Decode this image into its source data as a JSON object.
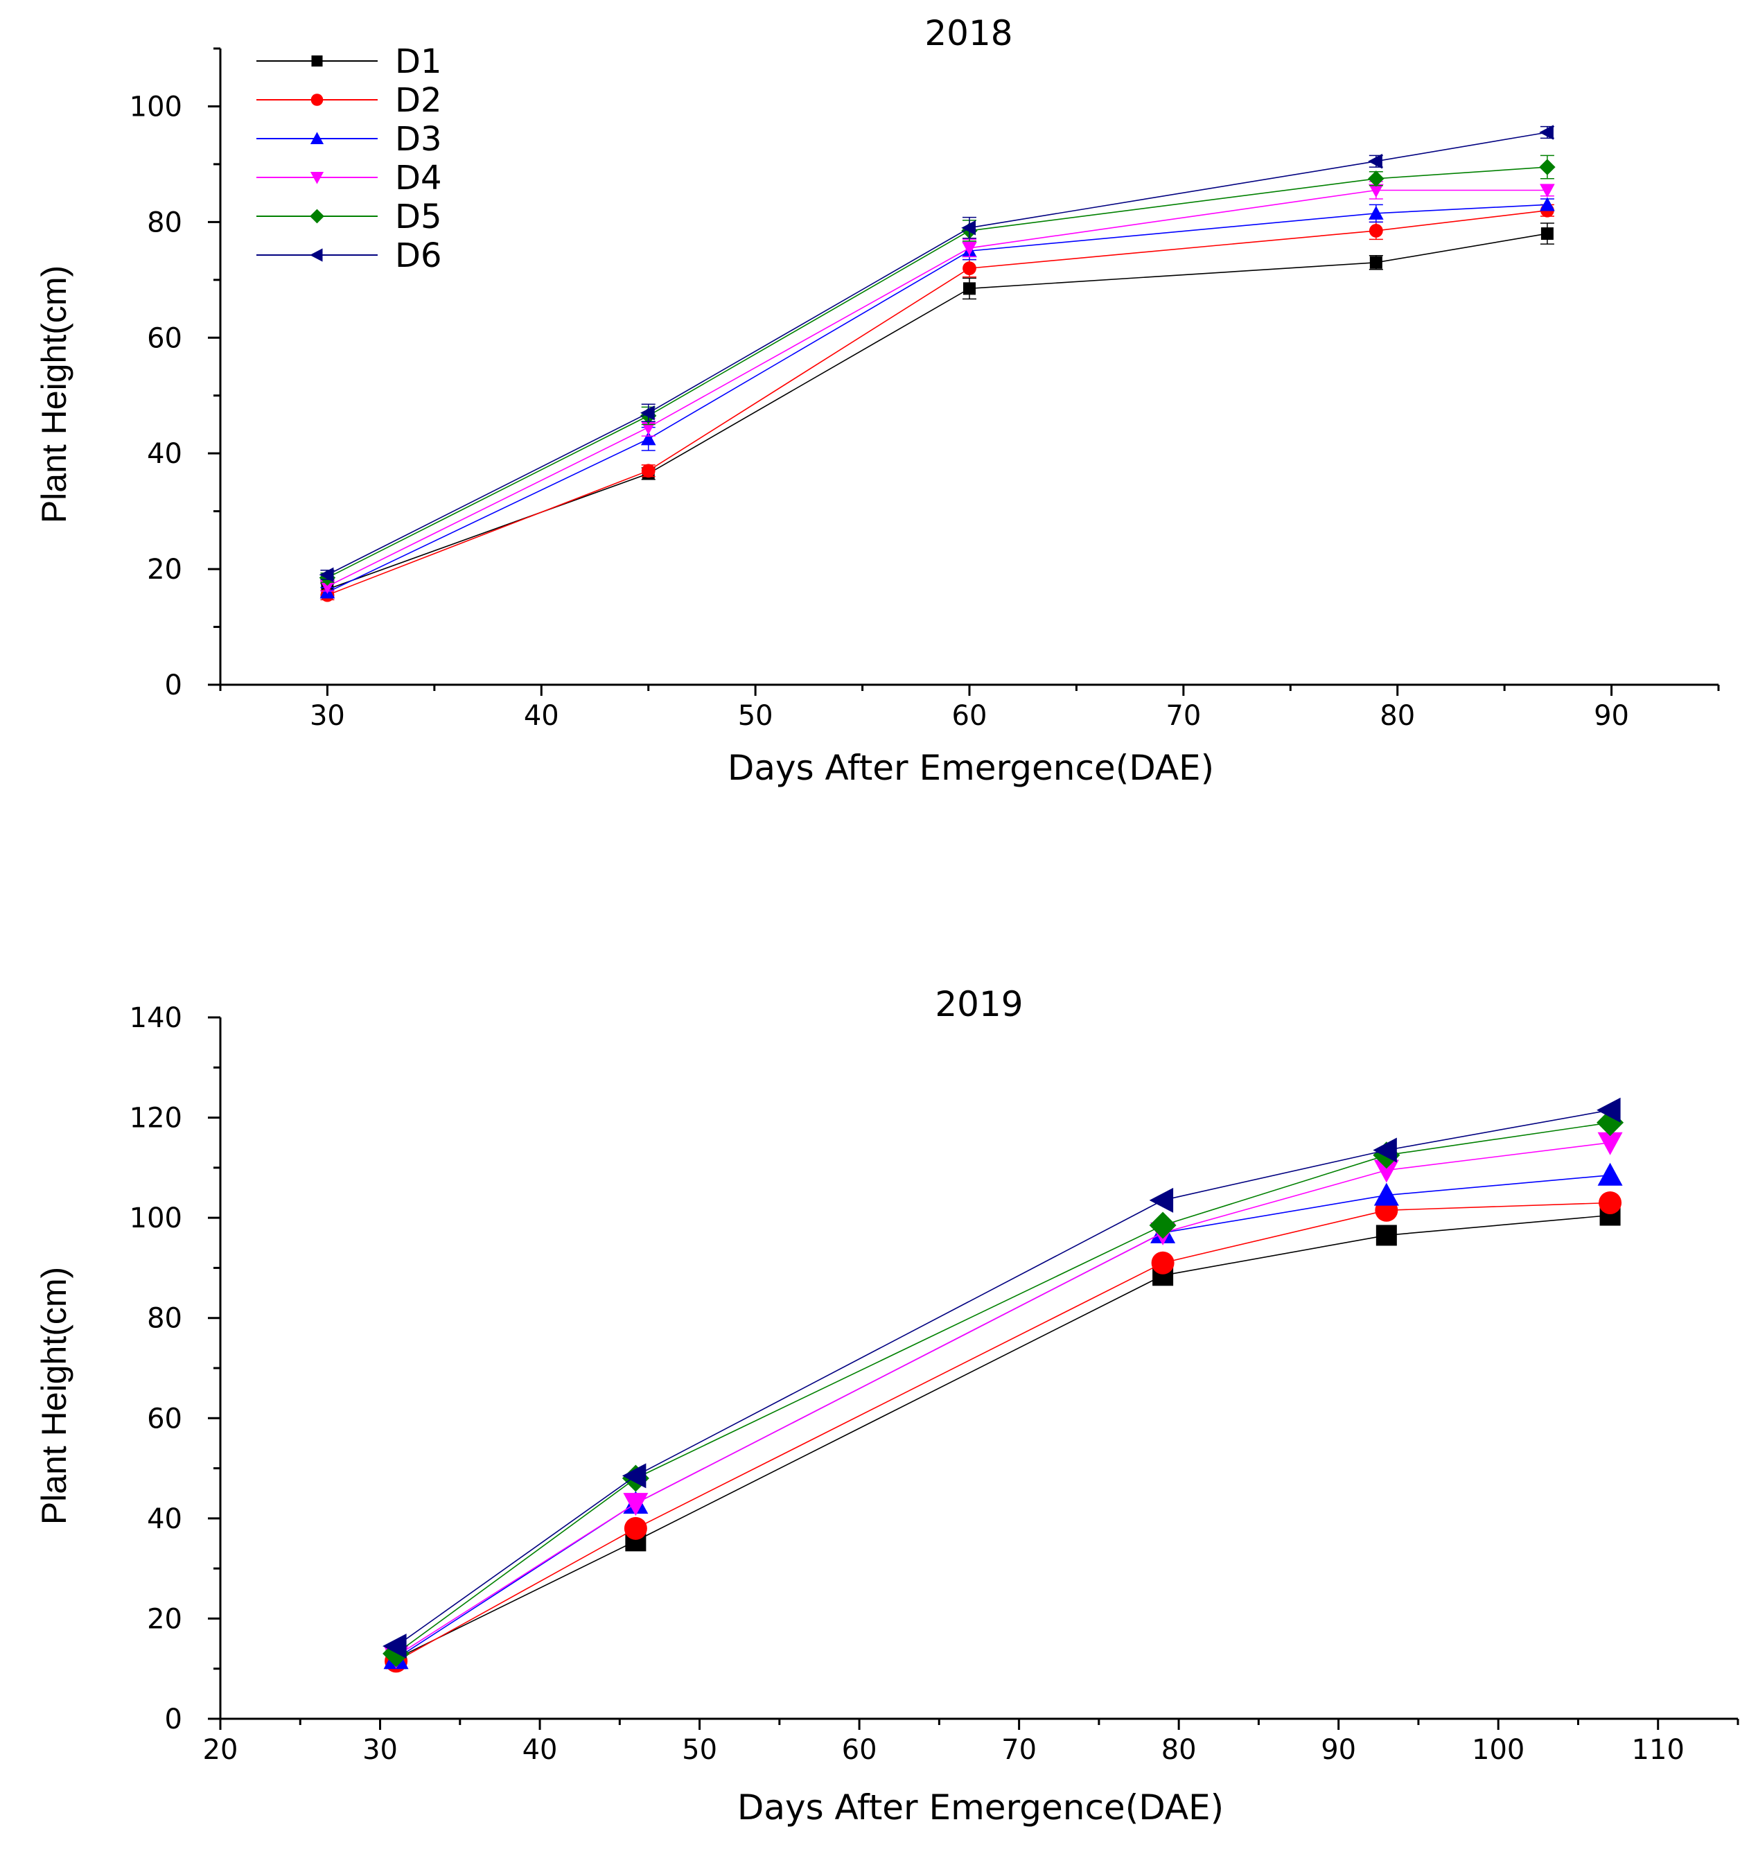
{
  "colors": {
    "D1": "#000000",
    "D2": "#ff0000",
    "D3": "#0000ff",
    "D4": "#ff00ff",
    "D5": "#008000",
    "D6": "#000080"
  },
  "chart_data": [
    {
      "type": "line",
      "title": "2018",
      "xlabel": "Days After Emergence(DAE)",
      "ylabel": "Plant Height(cm)",
      "xlim": [
        25,
        95
      ],
      "ylim": [
        0,
        110
      ],
      "xticks": [
        "30",
        "40",
        "50",
        "60",
        "70",
        "80",
        "90"
      ],
      "yticks": [
        "0",
        "20",
        "40",
        "60",
        "80",
        "100"
      ],
      "x": [
        30,
        45,
        60,
        79,
        87
      ],
      "legend": "top-left",
      "error_bars": true,
      "series": [
        {
          "name": "D1",
          "marker": "square",
          "values": [
            16.5,
            36.5,
            68.5,
            73,
            78
          ],
          "errors": [
            1,
            1,
            1.8,
            1.2,
            1.8
          ]
        },
        {
          "name": "D2",
          "marker": "circle",
          "values": [
            15.5,
            37,
            72,
            78.5,
            82
          ],
          "errors": [
            0.8,
            1,
            1.5,
            1.5,
            1
          ]
        },
        {
          "name": "D3",
          "marker": "triangle-up",
          "values": [
            16,
            42.5,
            75,
            81.5,
            83
          ],
          "errors": [
            0.8,
            2,
            1.5,
            1.5,
            1
          ]
        },
        {
          "name": "D4",
          "marker": "triangle-down",
          "values": [
            17,
            44.5,
            75.5,
            85.5,
            85.5
          ],
          "errors": [
            0.8,
            1.5,
            1.5,
            1.5,
            1
          ]
        },
        {
          "name": "D5",
          "marker": "diamond",
          "values": [
            18.5,
            46.5,
            78.5,
            87.5,
            89.5
          ],
          "errors": [
            0.8,
            1.5,
            1.8,
            1.2,
            2
          ]
        },
        {
          "name": "D6",
          "marker": "triangle-left",
          "values": [
            19,
            47,
            79,
            90.5,
            95.5
          ],
          "errors": [
            0.8,
            1.5,
            1.8,
            1,
            1
          ]
        }
      ]
    },
    {
      "type": "line",
      "title": "2019",
      "xlabel": "Days After Emergence(DAE)",
      "ylabel": "Plant Height(cm)",
      "xlim": [
        20,
        115
      ],
      "ylim": [
        0,
        140
      ],
      "xticks": [
        "20",
        "30",
        "40",
        "50",
        "60",
        "70",
        "80",
        "90",
        "100",
        "110"
      ],
      "yticks": [
        "0",
        "20",
        "40",
        "60",
        "80",
        "100",
        "120",
        "140"
      ],
      "x": [
        31,
        46,
        79,
        93,
        107
      ],
      "series": [
        {
          "name": "D1",
          "marker": "square",
          "values": [
            12,
            35.5,
            88.5,
            96.5,
            100.5
          ]
        },
        {
          "name": "D2",
          "marker": "circle",
          "values": [
            11.5,
            38,
            91,
            101.5,
            103
          ]
        },
        {
          "name": "D3",
          "marker": "triangle-up",
          "values": [
            12,
            43,
            97,
            104.5,
            108.5
          ]
        },
        {
          "name": "D4",
          "marker": "triangle-down",
          "values": [
            12.5,
            43,
            97,
            109.5,
            115
          ]
        },
        {
          "name": "D5",
          "marker": "diamond",
          "values": [
            13,
            48,
            98.5,
            112.5,
            119
          ]
        },
        {
          "name": "D6",
          "marker": "triangle-left",
          "values": [
            14.5,
            48.5,
            103.5,
            113.5,
            121.5
          ]
        }
      ]
    }
  ]
}
